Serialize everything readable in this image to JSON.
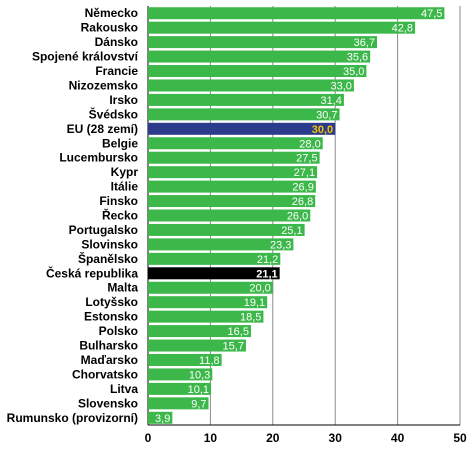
{
  "chart_data": {
    "type": "bar",
    "orientation": "horizontal",
    "title": "",
    "xlabel": "",
    "ylabel": "",
    "xlim": [
      0,
      50
    ],
    "ticks": [
      "0",
      "10",
      "20",
      "30",
      "40",
      "50"
    ],
    "grid": "vertical",
    "categories": [
      "Německo",
      "Rakousko",
      "Dánsko",
      "Spojené království",
      "Francie",
      "Nizozemsko",
      "Irsko",
      "Švédsko",
      "EU (28 zemí)",
      "Belgie",
      "Lucembursko",
      "Kypr",
      "Itálie",
      "Finsko",
      "Řecko",
      "Portugalsko",
      "Slovinsko",
      "Španělsko",
      "Česká republika",
      "Malta",
      "Lotyšsko",
      "Estonsko",
      "Polsko",
      "Bulharsko",
      "Maďarsko",
      "Chorvatsko",
      "Litva",
      "Slovensko",
      "Rumunsko (provizorní)"
    ],
    "values": [
      47.5,
      42.8,
      36.7,
      35.6,
      35.0,
      33.0,
      31.4,
      30.7,
      30.0,
      28.0,
      27.5,
      27.1,
      26.9,
      26.8,
      26.0,
      25.1,
      23.3,
      21.2,
      21.1,
      20.0,
      19.1,
      18.5,
      16.5,
      15.7,
      11.8,
      10.3,
      10.1,
      9.7,
      3.9
    ],
    "value_labels": [
      "47,5",
      "42,8",
      "36,7",
      "35,6",
      "35,0",
      "33,0",
      "31,4",
      "30,7",
      "30,0",
      "28,0",
      "27,5",
      "27,1",
      "26,9",
      "26,8",
      "26,0",
      "25,1",
      "23,3",
      "21,2",
      "21,1",
      "20,0",
      "19,1",
      "18,5",
      "16,5",
      "15,7",
      "11,8",
      "10,3",
      "10,1",
      "9,7",
      "3,9"
    ],
    "colors": {
      "default": "#3cb84a",
      "highlight_eu": "#2c3c8c",
      "highlight_cz": "#000000",
      "label_default": "#ffffff",
      "label_eu": "#f2c200"
    },
    "highlights": {
      "EU (28 zemí)": "highlight_eu",
      "Česká republika": "highlight_cz"
    }
  }
}
